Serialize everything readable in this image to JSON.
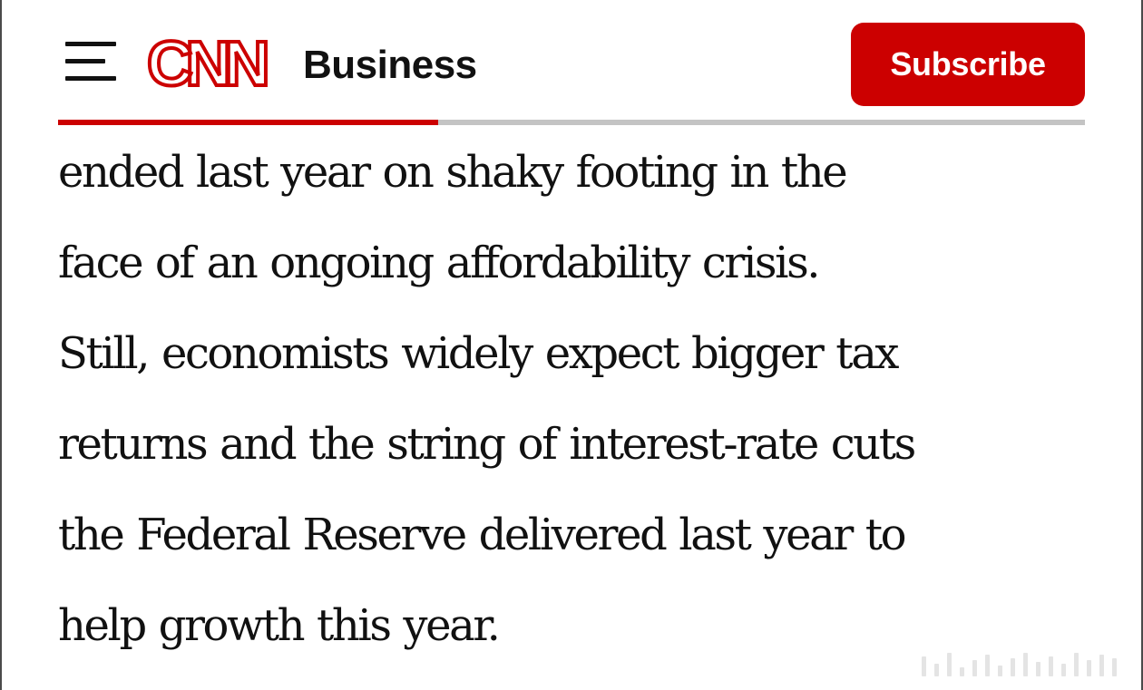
{
  "header": {
    "menu_icon": "hamburger-menu-icon",
    "logo": {
      "text": "CNN",
      "icon": "cnn-logo",
      "color": "#cc0000"
    },
    "section": "Business",
    "subscribe_label": "Subscribe",
    "accent_color": "#cc0000"
  },
  "reading_progress": {
    "fraction": 0.37,
    "fill_color": "#cc0000",
    "track_color": "#c4c4c4"
  },
  "article": {
    "lines": [
      "ended last year on shaky footing in the",
      "face of an ongoing affordability crisis.",
      "Still, economists widely expect bigger tax",
      "returns and the string of interest-rate cuts",
      "the Federal Reserve delivered last year to",
      "help growth this year."
    ]
  }
}
